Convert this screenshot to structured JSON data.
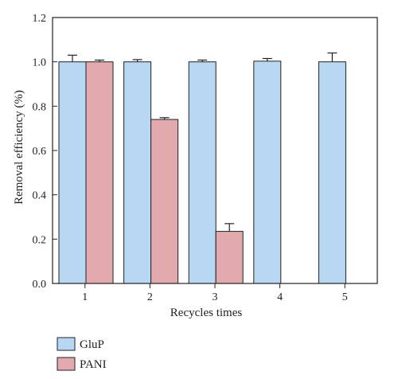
{
  "chart_data": {
    "type": "bar",
    "categories": [
      "1",
      "2",
      "3",
      "4",
      "5"
    ],
    "series": [
      {
        "name": "GluP",
        "values": [
          1.0,
          1.0,
          1.0,
          1.003,
          1.0
        ],
        "errors": [
          0.03,
          0.01,
          0.008,
          0.012,
          0.04
        ],
        "color": "#b7d7f2"
      },
      {
        "name": "PANI",
        "values": [
          1.0,
          0.74,
          0.235,
          null,
          null
        ],
        "errors": [
          0.008,
          0.008,
          0.035,
          null,
          null
        ],
        "color": "#e3aaad"
      }
    ],
    "xlabel": "Recycles times",
    "ylabel": "Removal efficiency (%)",
    "ylim": [
      0.0,
      1.2
    ],
    "yticks": [
      "0.0",
      "0.2",
      "0.4",
      "0.6",
      "0.8",
      "1.0",
      "1.2"
    ],
    "legend_position": "bottom-left",
    "grid": false
  }
}
